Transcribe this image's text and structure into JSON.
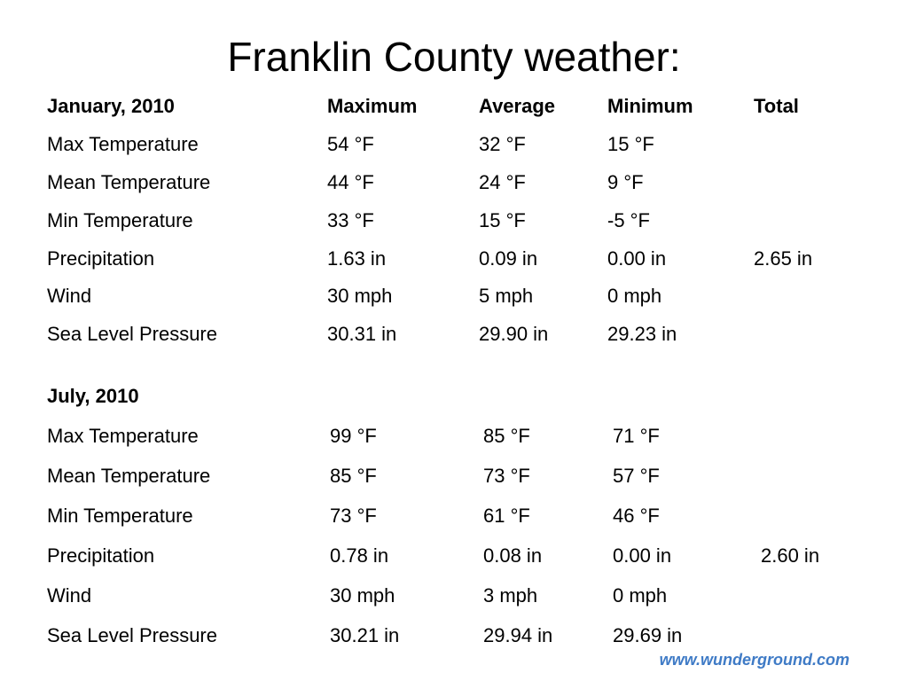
{
  "slide": {
    "title": "Franklin County weather:",
    "source": "www.wunderground.com"
  },
  "january": {
    "header": [
      "January, 2010",
      "Maximum",
      "Average",
      "Minimum",
      "Total"
    ],
    "rows": [
      [
        "Max Temperature",
        "54 °F",
        "32 °F",
        "15 °F",
        ""
      ],
      [
        "Mean Temperature",
        "44 °F",
        "24 °F",
        "9 °F",
        ""
      ],
      [
        "Min Temperature",
        "33 °F",
        "15 °F",
        "-5 °F",
        ""
      ],
      [
        "Precipitation",
        "1.63 in",
        "0.09 in",
        "0.00 in",
        "2.65 in"
      ],
      [
        "Wind",
        "30 mph",
        "5 mph",
        "0 mph",
        ""
      ],
      [
        "Sea Level Pressure",
        "30.31 in",
        "29.90 in",
        "29.23 in",
        ""
      ]
    ]
  },
  "july": {
    "header": [
      "July, 2010"
    ],
    "rows": [
      [
        "Max Temperature",
        "99 °F",
        "85 °F",
        "71 °F",
        ""
      ],
      [
        "Mean Temperature",
        "85 °F",
        "73 °F",
        "57 °F",
        ""
      ],
      [
        "Min Temperature",
        "73 °F",
        "61 °F",
        "46 °F",
        ""
      ],
      [
        "Precipitation",
        "0.78 in",
        "0.08 in",
        "0.00 in",
        "2.60 in"
      ],
      [
        "Wind",
        "30 mph",
        "3 mph",
        "0 mph",
        ""
      ],
      [
        "Sea Level Pressure",
        "30.21 in",
        "29.94 in",
        "29.69 in",
        ""
      ]
    ]
  }
}
